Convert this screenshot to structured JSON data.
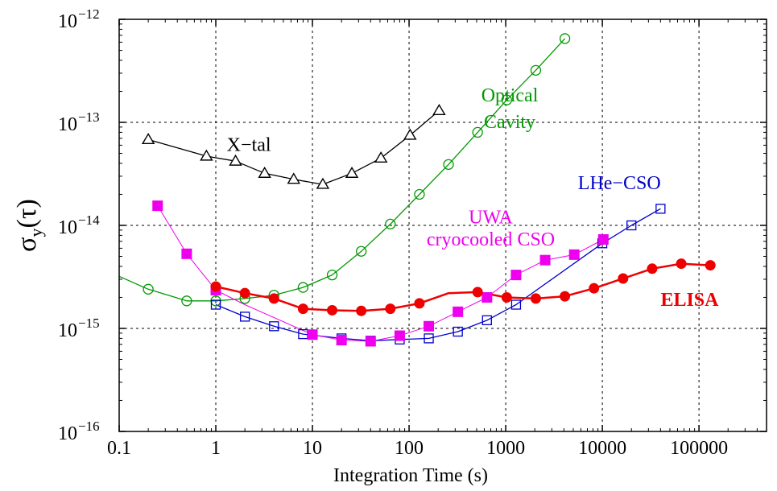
{
  "chart_data": {
    "type": "line",
    "xlabel": "Integration Time (s)",
    "ylabel_main": "σ",
    "ylabel_sub": "y",
    "ylabel_tail": "(τ)",
    "x_scale": "log",
    "y_scale": "log",
    "xlim": [
      0.1,
      500000
    ],
    "ylim": [
      1e-16,
      1e-12
    ],
    "grid": true,
    "x_ticks": [
      {
        "value": 0.1,
        "label": "0.1"
      },
      {
        "value": 1,
        "label": "1"
      },
      {
        "value": 10,
        "label": "10"
      },
      {
        "value": 100,
        "label": "100"
      },
      {
        "value": 1000,
        "label": "1000"
      },
      {
        "value": 10000,
        "label": "10000"
      },
      {
        "value": 100000,
        "label": "100000"
      }
    ],
    "y_ticks": [
      {
        "value": 1e-12,
        "base": "10",
        "exp": "−12"
      },
      {
        "value": 1e-13,
        "base": "10",
        "exp": "−13"
      },
      {
        "value": 1e-14,
        "base": "10",
        "exp": "−14"
      },
      {
        "value": 1e-15,
        "base": "10",
        "exp": "−15"
      },
      {
        "value": 1e-16,
        "base": "10",
        "exp": "−16"
      }
    ],
    "series": [
      {
        "id": "xtal",
        "color": "#000000",
        "marker": "triangle-open",
        "line_width": 1.3,
        "labels": [
          {
            "text": "X−tal",
            "anchor_x": 2.2,
            "anchor_y": 5.3e-14
          }
        ],
        "line_x": [
          0.2,
          0.8,
          1.6,
          3.2,
          6.4,
          12.8,
          25.6,
          51.2,
          102.4,
          204.8
        ],
        "line_y": [
          6.8e-14,
          4.7e-14,
          4.2e-14,
          3.2e-14,
          2.8e-14,
          2.5e-14,
          3.2e-14,
          4.5e-14,
          7.5e-14,
          1.3e-13
        ],
        "marker_x": [
          0.2,
          0.8,
          1.6,
          3.2,
          6.4,
          12.8,
          25.6,
          51.2,
          102.4,
          204.8
        ],
        "marker_y": [
          6.8e-14,
          4.7e-14,
          4.2e-14,
          3.2e-14,
          2.8e-14,
          2.5e-14,
          3.2e-14,
          4.5e-14,
          7.5e-14,
          1.3e-13
        ]
      },
      {
        "id": "optical-cavity",
        "color": "#009900",
        "marker": "circle-open",
        "line_width": 1.3,
        "labels": [
          {
            "text": "Optical",
            "anchor_x": 1100,
            "anchor_y": 1.6e-13
          },
          {
            "text": "Cavity",
            "anchor_x": 1100,
            "anchor_y": 8.8e-14
          }
        ],
        "line_x": [
          0.1,
          0.2,
          0.5,
          1,
          2,
          4,
          8,
          16,
          32,
          64,
          128,
          256,
          512,
          1024,
          2048,
          4096
        ],
        "line_y": [
          3.2e-15,
          2.4e-15,
          1.85e-15,
          1.85e-15,
          1.95e-15,
          2.1e-15,
          2.5e-15,
          3.3e-15,
          5.6e-15,
          1.03e-14,
          2e-14,
          3.9e-14,
          8e-14,
          1.65e-13,
          3.2e-13,
          6.5e-13
        ],
        "marker_x": [
          0.2,
          0.5,
          1,
          2,
          4,
          8,
          16,
          32,
          64,
          128,
          256,
          512,
          1024,
          2048,
          4096
        ],
        "marker_y": [
          2.4e-15,
          1.85e-15,
          1.85e-15,
          1.95e-15,
          2.1e-15,
          2.5e-15,
          3.3e-15,
          5.6e-15,
          1.03e-14,
          2e-14,
          3.9e-14,
          8e-14,
          1.65e-13,
          3.2e-13,
          6.5e-13
        ]
      },
      {
        "id": "lhe-cso",
        "color": "#0000cc",
        "marker": "square-open",
        "line_width": 1.3,
        "labels": [
          {
            "text": "LHe−CSO",
            "anchor_x": 15000,
            "anchor_y": 2.25e-14
          }
        ],
        "line_x": [
          1,
          2,
          4,
          8,
          20,
          40,
          80,
          160,
          320,
          640,
          1280,
          10000,
          20000,
          40000
        ],
        "line_y": [
          1.7e-15,
          1.3e-15,
          1.05e-15,
          8.8e-16,
          8e-16,
          7.6e-16,
          7.8e-16,
          8e-16,
          9.3e-16,
          1.2e-15,
          1.7e-15,
          6.7e-15,
          1e-14,
          1.45e-14
        ],
        "marker_x": [
          1,
          2,
          4,
          8,
          20,
          40,
          80,
          160,
          320,
          640,
          1280,
          10000,
          20000,
          40000
        ],
        "marker_y": [
          1.7e-15,
          1.3e-15,
          1.05e-15,
          8.8e-16,
          8e-16,
          7.6e-16,
          7.8e-16,
          8e-16,
          9.3e-16,
          1.2e-15,
          1.7e-15,
          6.7e-15,
          1e-14,
          1.45e-14
        ]
      },
      {
        "id": "uwa-cso",
        "color": "#ee00ee",
        "marker": "square-filled",
        "line_width": 1.0,
        "labels": [
          {
            "text": "UWA",
            "anchor_x": 700,
            "anchor_y": 1.05e-14
          },
          {
            "text": "cryocooled CSO",
            "anchor_x": 700,
            "anchor_y": 6.4e-15
          }
        ],
        "line_x": [
          0.25,
          0.5,
          1,
          2,
          10,
          20,
          40,
          80,
          160,
          320,
          640,
          1280,
          2560,
          5120,
          10240
        ],
        "line_y": [
          1.55e-14,
          5.3e-15,
          2.35e-15,
          1.7e-15,
          8.7e-16,
          7.7e-16,
          7.5e-16,
          8.5e-16,
          1.05e-15,
          1.45e-15,
          2e-15,
          3.3e-15,
          4.6e-15,
          5.2e-15,
          7.3e-15
        ],
        "marker_x": [
          0.25,
          0.5,
          1,
          10,
          20,
          40,
          80,
          160,
          320,
          640,
          1280,
          2560,
          5120,
          10240
        ],
        "marker_y": [
          1.55e-14,
          5.3e-15,
          2.35e-15,
          8.7e-16,
          7.7e-16,
          7.5e-16,
          8.5e-16,
          1.05e-15,
          1.45e-15,
          2e-15,
          3.3e-15,
          4.6e-15,
          5.2e-15,
          7.3e-15
        ]
      },
      {
        "id": "elisa",
        "color": "#ee0000",
        "marker": "circle-filled",
        "line_width": 2.5,
        "labels": [
          {
            "text": "ELISA",
            "anchor_x": 80000,
            "anchor_y": 1.65e-15,
            "bold": true
          }
        ],
        "line_x": [
          1,
          2,
          4,
          8,
          16,
          32,
          64,
          128,
          256,
          512,
          1024,
          2048,
          4096,
          8192,
          16384,
          32768,
          65536,
          131072
        ],
        "line_y": [
          2.55e-15,
          2.2e-15,
          1.95e-15,
          1.55e-15,
          1.5e-15,
          1.48e-15,
          1.55e-15,
          1.75e-15,
          2.2e-15,
          2.25e-15,
          2e-15,
          1.95e-15,
          2.05e-15,
          2.45e-15,
          3.05e-15,
          3.8e-15,
          4.25e-15,
          4.1e-15
        ],
        "marker_x": [
          1,
          2,
          4,
          8,
          16,
          32,
          64,
          128,
          512,
          1024,
          2048,
          4096,
          8192,
          16384,
          32768,
          65536,
          131072
        ],
        "marker_y": [
          2.55e-15,
          2.2e-15,
          1.95e-15,
          1.55e-15,
          1.5e-15,
          1.48e-15,
          1.55e-15,
          1.75e-15,
          2.25e-15,
          2e-15,
          1.95e-15,
          2.05e-15,
          2.45e-15,
          3.05e-15,
          3.8e-15,
          4.25e-15,
          4.1e-15
        ]
      }
    ]
  }
}
